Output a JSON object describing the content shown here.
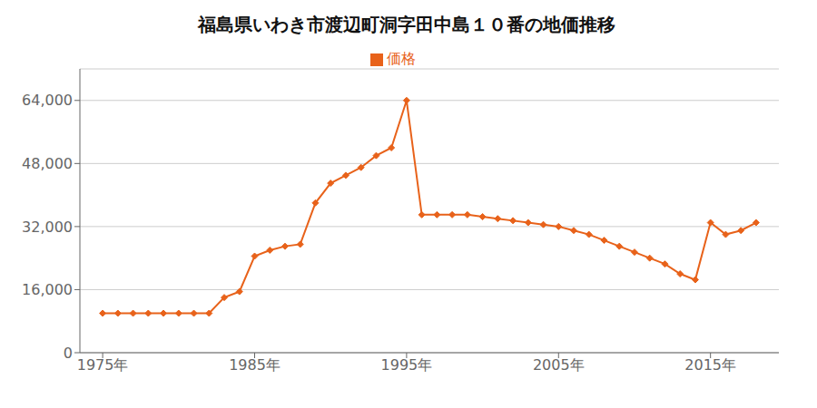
{
  "chart_data": {
    "type": "line",
    "title": "福島県いわき市渡辺町洞字田中島１０番の地価推移",
    "x": [
      1975,
      1976,
      1977,
      1978,
      1979,
      1980,
      1981,
      1982,
      1983,
      1984,
      1985,
      1986,
      1987,
      1988,
      1989,
      1990,
      1991,
      1992,
      1993,
      1994,
      1995,
      1996,
      1997,
      1998,
      1999,
      2000,
      2001,
      2002,
      2003,
      2004,
      2005,
      2006,
      2007,
      2008,
      2009,
      2010,
      2011,
      2012,
      2013,
      2014,
      2015,
      2016,
      2017,
      2018
    ],
    "series": [
      {
        "name": "価格",
        "color": "#e8621a",
        "marker": "diamond",
        "line_style": "solid",
        "values": [
          10000,
          10000,
          10000,
          10000,
          10000,
          10000,
          10000,
          10000,
          14000,
          15500,
          24500,
          26000,
          27000,
          27500,
          38000,
          43000,
          45000,
          47000,
          50000,
          52000,
          64000,
          35000,
          35000,
          35000,
          35000,
          34500,
          34000,
          33500,
          33000,
          32500,
          32000,
          31000,
          30000,
          28500,
          27000,
          25500,
          24000,
          22500,
          20000,
          18500,
          33000,
          30000,
          31000,
          33000
        ]
      }
    ],
    "xlim": [
      1973.5,
      2019.5
    ],
    "xticks": [
      {
        "value": 1975,
        "label": "1975年"
      },
      {
        "value": 1985,
        "label": "1985年"
      },
      {
        "value": 1995,
        "label": "1995年"
      },
      {
        "value": 2005,
        "label": "2005年"
      },
      {
        "value": 2015,
        "label": "2015年"
      }
    ],
    "ylim": [
      0,
      72000
    ],
    "yticks": [
      0,
      {
        "value": 16000,
        "label": "16,000"
      },
      {
        "value": 32000,
        "label": "32,000"
      },
      {
        "value": 48000,
        "label": "48,000"
      },
      {
        "value": 64000,
        "label": "64,000"
      }
    ],
    "grid": true,
    "legend": "top"
  }
}
